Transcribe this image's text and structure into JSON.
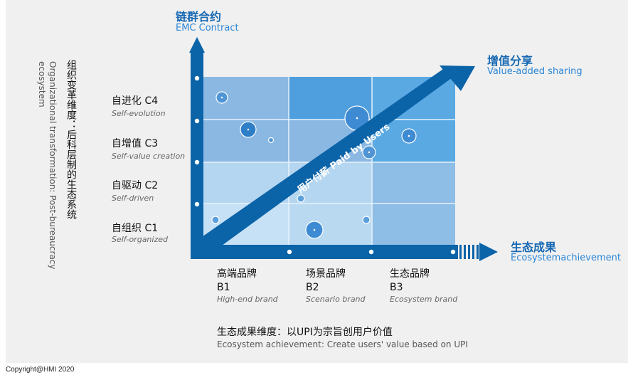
{
  "axis_top": {
    "cn": "链群合约",
    "en": "EMC Contract"
  },
  "axis_right": {
    "cn": "生态成果",
    "en": "Ecosystemachievement"
  },
  "axis_diag": {
    "cn": "增值分享",
    "en": "Value-added sharing"
  },
  "diagonal_label": "用户付薪 Paid by Users",
  "y_dimension": {
    "cn": "组织变革维度：后科层制的生态系统",
    "en": "Organizational transformation: Post-bureaucracy ecosystem"
  },
  "x_dimension": {
    "cn": "生态成果维度：以UPI为宗旨创用户价值",
    "en": "Ecosystem achievement: Create users' value based on UPI"
  },
  "levels": [
    {
      "cn": "自进化 C4",
      "en": "Self-evolution"
    },
    {
      "cn": "自增值 C3",
      "en": "Self-value creation"
    },
    {
      "cn": "自驱动 C2",
      "en": "Self-driven"
    },
    {
      "cn": "自组织 C1",
      "en": "Self-organized"
    }
  ],
  "brands": [
    {
      "cn": "高端品牌",
      "code": "B1",
      "en": "High-end brand"
    },
    {
      "cn": "场景品牌",
      "code": "B2",
      "en": "Scenario brand"
    },
    {
      "cn": "生态品牌",
      "code": "B3",
      "en": "Ecosystem brand"
    }
  ],
  "copyright": "Copyright@HMI 2020",
  "colors": {
    "dark_blue": "#0b63a8",
    "accent": "#1668b3",
    "grid_light": "#b9d9f1",
    "grid_mid": "#8ebde6",
    "grid_dark": "#5aa9e3"
  }
}
